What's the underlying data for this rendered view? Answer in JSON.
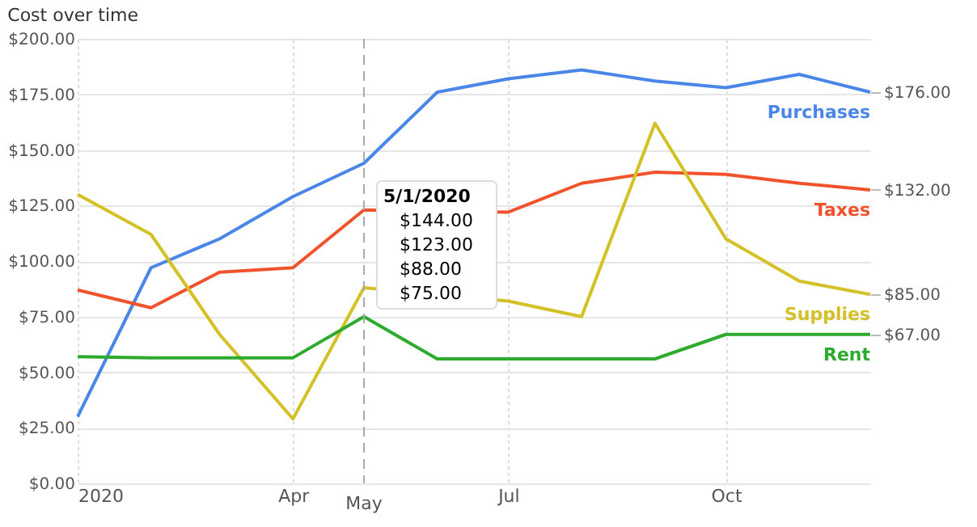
{
  "chart_data": {
    "type": "line",
    "title": "Cost over time",
    "x": [
      "2020-01",
      "2020-02",
      "2020-03",
      "2020-04",
      "2020-05",
      "2020-06",
      "2020-07",
      "2020-08",
      "2020-09",
      "2020-10",
      "2020-11",
      "2020-12"
    ],
    "series": [
      {
        "name": "Purchases",
        "color": "#4a86e8",
        "values": [
          30,
          97,
          110,
          129,
          144,
          176,
          182,
          186,
          181,
          178,
          184,
          176
        ]
      },
      {
        "name": "Taxes",
        "color": "#f0522c",
        "values": [
          87,
          79,
          95,
          97,
          123,
          null,
          122,
          135,
          140,
          139,
          135,
          132
        ]
      },
      {
        "name": "Supplies",
        "color": "#d4c027",
        "values": [
          130,
          112,
          67,
          29,
          88,
          null,
          82,
          75,
          162,
          110,
          91,
          85
        ]
      },
      {
        "name": "Rent",
        "color": "#2eaa2e",
        "values": [
          57,
          56.5,
          56.5,
          56.5,
          75,
          56,
          56,
          56,
          56,
          67,
          67,
          67
        ]
      }
    ],
    "xlim": [
      "2020-01",
      "2020-12"
    ],
    "xticks": [
      {
        "value": "2020-01",
        "label": "2020"
      },
      {
        "value": "2020-04",
        "label": "Apr"
      },
      {
        "value": "2020-07",
        "label": "Jul"
      },
      {
        "value": "2020-10",
        "label": "Oct"
      }
    ],
    "ylim": [
      0,
      200
    ],
    "yticks": [
      {
        "value": 0,
        "label": "$0.00"
      },
      {
        "value": 25,
        "label": "$25.00"
      },
      {
        "value": 50,
        "label": "$50.00"
      },
      {
        "value": 75,
        "label": "$75.00"
      },
      {
        "value": 100,
        "label": "$100.00"
      },
      {
        "value": 125,
        "label": "$125.00"
      },
      {
        "value": 150,
        "label": "$150.00"
      },
      {
        "value": 175,
        "label": "$175.00"
      },
      {
        "value": 200,
        "label": "$200.00"
      }
    ],
    "y2lim": [
      0,
      200
    ],
    "y2ticks": [
      {
        "value": 176,
        "label": "$176.00"
      },
      {
        "value": 132,
        "label": "$132.00"
      },
      {
        "value": 85,
        "label": "$85.00"
      },
      {
        "value": 67,
        "label": "$67.00"
      }
    ],
    "ref_lines": [
      {
        "axis": "x",
        "value": "2020-05",
        "label": "May",
        "color": "#aaaaaa",
        "line_style": "dashed"
      }
    ],
    "annotations": [
      "5/1/2020",
      "$144.00",
      "$123.00",
      "$88.00",
      "$75.00"
    ],
    "grid": true,
    "legend": false,
    "marker": "none",
    "line_style": "solid"
  }
}
